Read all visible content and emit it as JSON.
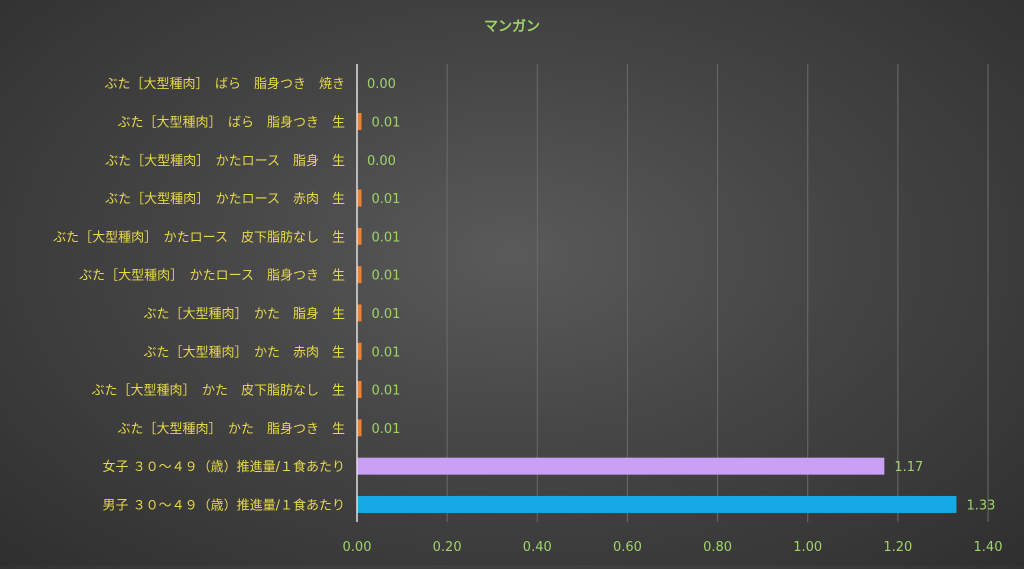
{
  "chart_data": {
    "type": "bar",
    "orientation": "horizontal",
    "title": "マンガン",
    "xlabel": "",
    "ylabel": "",
    "xlim": [
      0,
      1.4
    ],
    "x_ticks": [
      "0.00",
      "0.20",
      "0.40",
      "0.60",
      "0.80",
      "1.00",
      "1.20",
      "1.40"
    ],
    "grid": true,
    "legend": "none",
    "categories": [
      "ぶた［大型種肉］　ばら　脂身つき　焼き",
      "ぶた［大型種肉］　ばら　脂身つき　生",
      "ぶた［大型種肉］　かたロース　脂身　生",
      "ぶた［大型種肉］　かたロース　赤肉　生",
      "ぶた［大型種肉］　かたロース　皮下脂肪なし　生",
      "ぶた［大型種肉］　かたロース　脂身つき　生",
      "ぶた［大型種肉］　かた　脂身　生",
      "ぶた［大型種肉］　かた　赤肉　生",
      "ぶた［大型種肉］　かた　皮下脂肪なし　生",
      "ぶた［大型種肉］　かた　脂身つき　生",
      "女子 ３０～４９（歳）推進量/１食あたり",
      "男子 ３０～４９（歳）推進量/１食あたり"
    ],
    "values": [
      0.0,
      0.01,
      0.0,
      0.01,
      0.01,
      0.01,
      0.01,
      0.01,
      0.01,
      0.01,
      1.17,
      1.33
    ],
    "data_labels": [
      "0.00",
      "0.01",
      "0.00",
      "0.01",
      "0.01",
      "0.01",
      "0.01",
      "0.01",
      "0.01",
      "0.01",
      "1.17",
      "1.33"
    ],
    "bar_colors": [
      "#f07f2e",
      "#f07f2e",
      "#f07f2e",
      "#f07f2e",
      "#f07f2e",
      "#f07f2e",
      "#f07f2e",
      "#f07f2e",
      "#f07f2e",
      "#f07f2e",
      "#c9a0f5",
      "#16a9e6"
    ],
    "colors": {
      "title": "#9fd36a",
      "category_label": "#e6d84a",
      "tick_label": "#9fd36a",
      "data_label": "#9fd36a",
      "grid": "#6a6a6a",
      "axis": "#e0e0e0"
    }
  }
}
